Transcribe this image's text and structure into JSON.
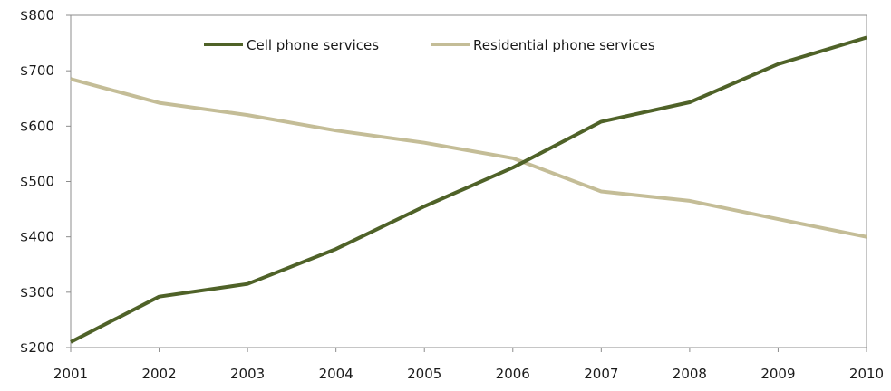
{
  "chart_data": {
    "type": "line",
    "title": "",
    "xlabel": "",
    "ylabel": "",
    "x": [
      2001,
      2002,
      2003,
      2004,
      2005,
      2006,
      2007,
      2008,
      2009,
      2010
    ],
    "x_tick_labels": [
      "2001",
      "2002",
      "2003",
      "2004",
      "2005",
      "2006",
      "2007",
      "2008",
      "2009",
      "2010"
    ],
    "ylim": [
      200,
      800
    ],
    "y_ticks": [
      200,
      300,
      400,
      500,
      600,
      700,
      800
    ],
    "y_tick_labels": [
      "$200",
      "$300",
      "$400",
      "$500",
      "$600",
      "$700",
      "$800"
    ],
    "grid": false,
    "legend_position": "top-center",
    "series": [
      {
        "name": "Cell phone services",
        "color": "#4f6228",
        "values": [
          210,
          292,
          315,
          378,
          455,
          525,
          608,
          643,
          712,
          760
        ]
      },
      {
        "name": "Residential phone services",
        "color": "#c4bd97",
        "values": [
          685,
          642,
          620,
          592,
          570,
          542,
          482,
          465,
          432,
          400
        ]
      }
    ]
  }
}
